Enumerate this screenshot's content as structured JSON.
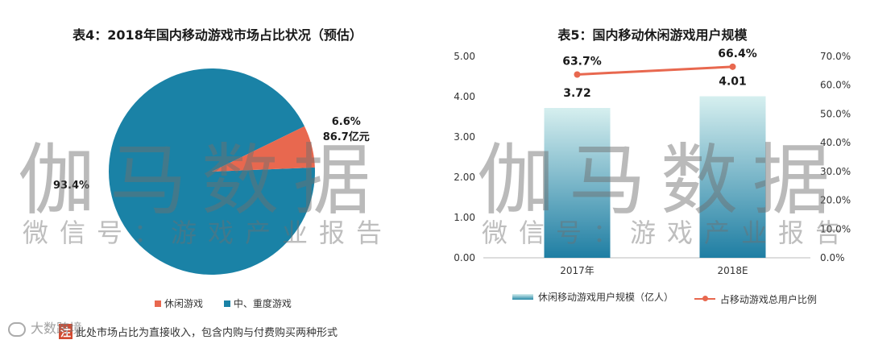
{
  "left_chart": {
    "title": "表4：2018年国内移动游戏市场占比状况（预估）",
    "legend": [
      {
        "label": "休闲游戏",
        "color": "#e8684f"
      },
      {
        "label": "中、重度游戏",
        "color": "#1a82a6"
      }
    ],
    "footnote": {
      "mark": "注",
      "text": "此处市场占比为直接收入，包含内购与付费购买两种形式"
    }
  },
  "right_chart": {
    "title": "表5：国内移动休闲游戏用户规模",
    "legend": [
      {
        "label": "休闲移动游戏用户规模（亿人）",
        "kind": "bar"
      },
      {
        "label": "占移动游戏总用户比例",
        "kind": "line",
        "color": "#e8684f"
      }
    ]
  },
  "watermark": {
    "main": "伽马数据",
    "sub": "微信号：游戏产业报告"
  },
  "brand": {
    "logo_text": "大数跨境"
  },
  "chart_data": [
    {
      "type": "pie",
      "title": "表4：2018年国内移动游戏市场占比状况（预估）",
      "slices": [
        {
          "name": "休闲游戏",
          "value": 6.6,
          "labels": [
            "6.6%",
            "86.7亿元"
          ],
          "color": "#e8684f"
        },
        {
          "name": "中、重度游戏",
          "value": 93.4,
          "labels": [
            "93.4%"
          ],
          "color": "#1a82a6"
        }
      ]
    },
    {
      "type": "bar",
      "title": "表5：国内移动休闲游戏用户规模",
      "categories": [
        "2017年",
        "2018E"
      ],
      "series": [
        {
          "name": "休闲移动游戏用户规模（亿人）",
          "kind": "bar",
          "axis": "left",
          "values": [
            3.72,
            4.01
          ],
          "value_labels": [
            "3.72",
            "4.01"
          ]
        },
        {
          "name": "占移动游戏总用户比例",
          "kind": "line",
          "axis": "right",
          "values": [
            63.7,
            66.4
          ],
          "value_labels": [
            "63.7%",
            "66.4%"
          ],
          "color": "#e8684f"
        }
      ],
      "y_left": {
        "min": 0,
        "max": 5,
        "ticks": [
          "0.00",
          "1.00",
          "2.00",
          "3.00",
          "4.00",
          "5.00"
        ]
      },
      "y_right": {
        "min": 0,
        "max": 70,
        "ticks": [
          "0.0%",
          "10.0%",
          "20.0%",
          "30.0%",
          "40.0%",
          "50.0%",
          "60.0%",
          "70.0%"
        ]
      }
    }
  ]
}
